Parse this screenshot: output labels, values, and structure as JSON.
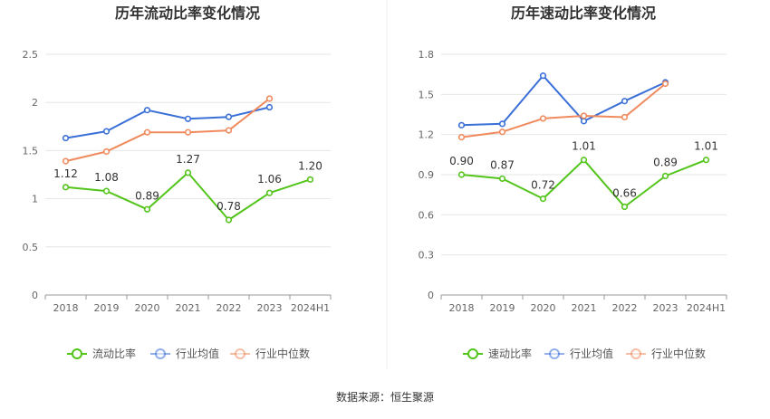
{
  "source_label": "数据来源：恒生聚源",
  "chart_data": [
    {
      "type": "line",
      "title": "历年流动比率变化情况",
      "categories": [
        "2018",
        "2019",
        "2020",
        "2021",
        "2022",
        "2023",
        "2024H1"
      ],
      "ylim": [
        0,
        2.5
      ],
      "yticks": [
        "0",
        "0.5",
        "1",
        "1.5",
        "2",
        "2.5"
      ],
      "grid": true,
      "legend_position": "bottom",
      "series": [
        {
          "name": "流动比率",
          "color": "#52c41a",
          "values": [
            1.12,
            1.08,
            0.89,
            1.27,
            0.78,
            1.06,
            1.2
          ],
          "labels": [
            "1.12",
            "1.08",
            "0.89",
            "1.27",
            "0.78",
            "1.06",
            "1.20"
          ]
        },
        {
          "name": "行业均值",
          "color": "#3a6fd8",
          "values": [
            1.63,
            1.7,
            1.92,
            1.83,
            1.85,
            1.95,
            null
          ]
        },
        {
          "name": "行业中位数",
          "color": "#f08a5d",
          "values": [
            1.39,
            1.49,
            1.69,
            1.69,
            1.71,
            2.04,
            null
          ]
        }
      ]
    },
    {
      "type": "line",
      "title": "历年速动比率变化情况",
      "categories": [
        "2018",
        "2019",
        "2020",
        "2021",
        "2022",
        "2023",
        "2024H1"
      ],
      "ylim": [
        0,
        1.8
      ],
      "yticks": [
        "0",
        "0.3",
        "0.6",
        "0.9",
        "1.2",
        "1.5",
        "1.8"
      ],
      "grid": true,
      "legend_position": "bottom",
      "series": [
        {
          "name": "速动比率",
          "color": "#52c41a",
          "values": [
            0.9,
            0.87,
            0.72,
            1.01,
            0.66,
            0.89,
            1.01
          ],
          "labels": [
            "0.90",
            "0.87",
            "0.72",
            "1.01",
            "0.66",
            "0.89",
            "1.01"
          ]
        },
        {
          "name": "行业均值",
          "color": "#3a6fd8",
          "values": [
            1.27,
            1.28,
            1.64,
            1.3,
            1.45,
            1.59,
            null
          ]
        },
        {
          "name": "行业中位数",
          "color": "#f08a5d",
          "values": [
            1.18,
            1.22,
            1.32,
            1.34,
            1.33,
            1.58,
            null
          ]
        }
      ]
    }
  ]
}
